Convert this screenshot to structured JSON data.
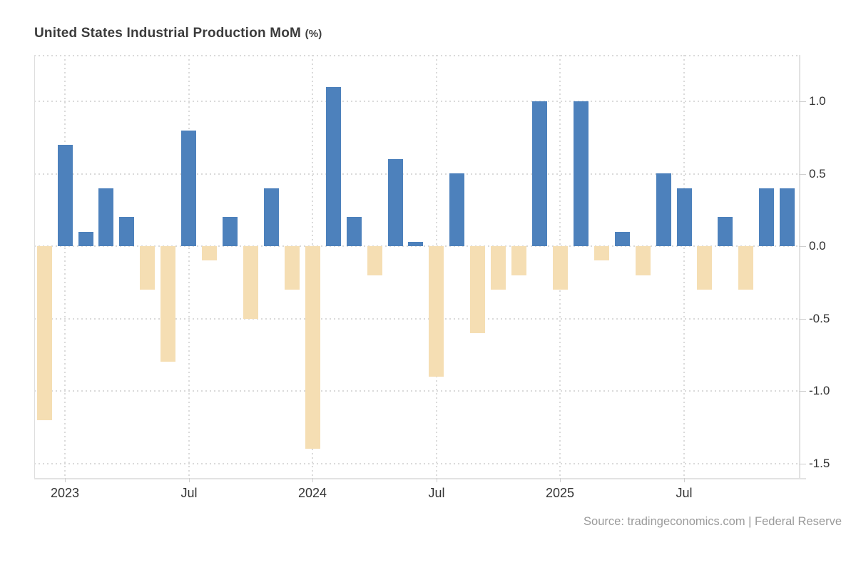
{
  "title": {
    "text": "United States Industrial Production MoM",
    "unit_suffix": "(%)"
  },
  "source_note": "Source: tradingeconomics.com | Federal Reserve",
  "colors": {
    "positive_bar": "#4d81bc",
    "negative_bar": "#f5deb3",
    "gridline": "#dadada",
    "axis_line": "#e2e2e2",
    "tick_label": "#333333",
    "title_text": "#3c3c3c",
    "source_text": "#9b9b9b",
    "background": "#ffffff"
  },
  "chart_data": {
    "type": "bar",
    "title": "United States Industrial Production MoM (%)",
    "xlabel": "",
    "ylabel": "",
    "unit": "%",
    "categories": [
      "Dec 2022",
      "Jan 2023",
      "Feb 2023",
      "Mar 2023",
      "Apr 2023",
      "May 2023",
      "Jun 2023",
      "Jul 2023",
      "Aug 2023",
      "Sep 2023",
      "Oct 2023",
      "Nov 2023",
      "Dec 2023",
      "Jan 2024",
      "Feb 2024",
      "Mar 2024",
      "Apr 2024",
      "May 2024",
      "Jun 2024",
      "Jul 2024",
      "Aug 2024",
      "Sep 2024",
      "Oct 2024",
      "Nov 2024",
      "Dec 2024",
      "Jan 2025",
      "Feb 2025",
      "Mar 2025",
      "Apr 2025",
      "May 2025",
      "Jun 2025",
      "Jul 2025",
      "Aug 2025",
      "Sep 2025",
      "Oct 2025",
      "Nov 2025",
      "Dec 2025"
    ],
    "values": [
      -1.2,
      0.7,
      0.1,
      0.4,
      0.2,
      -0.3,
      -0.8,
      0.8,
      -0.1,
      0.2,
      -0.5,
      0.4,
      -0.3,
      -1.4,
      1.1,
      0.2,
      -0.2,
      0.6,
      0.03,
      -0.9,
      0.5,
      -0.6,
      -0.3,
      -0.2,
      1.0,
      -0.3,
      1.0,
      -0.1,
      0.1,
      -0.2,
      0.5,
      0.4,
      -0.3,
      0.2,
      -0.3,
      0.4,
      0.4
    ],
    "y_ticks": [
      {
        "value": 1.0,
        "label": "1.0"
      },
      {
        "value": 0.5,
        "label": "0.5"
      },
      {
        "value": 0.0,
        "label": "0.0"
      },
      {
        "value": -0.5,
        "label": "-0.5"
      },
      {
        "value": -1.0,
        "label": "-1.0"
      },
      {
        "value": -1.5,
        "label": "-1.5"
      }
    ],
    "x_ticks": [
      {
        "month_index": 1,
        "label": "2023"
      },
      {
        "month_index": 7,
        "label": "Jul"
      },
      {
        "month_index": 13,
        "label": "2024"
      },
      {
        "month_index": 19,
        "label": "Jul"
      },
      {
        "month_index": 25,
        "label": "2025"
      },
      {
        "month_index": 31,
        "label": "Jul"
      }
    ],
    "ylim": [
      -1.61,
      1.33
    ],
    "grid": "dotted",
    "legend": "none"
  }
}
